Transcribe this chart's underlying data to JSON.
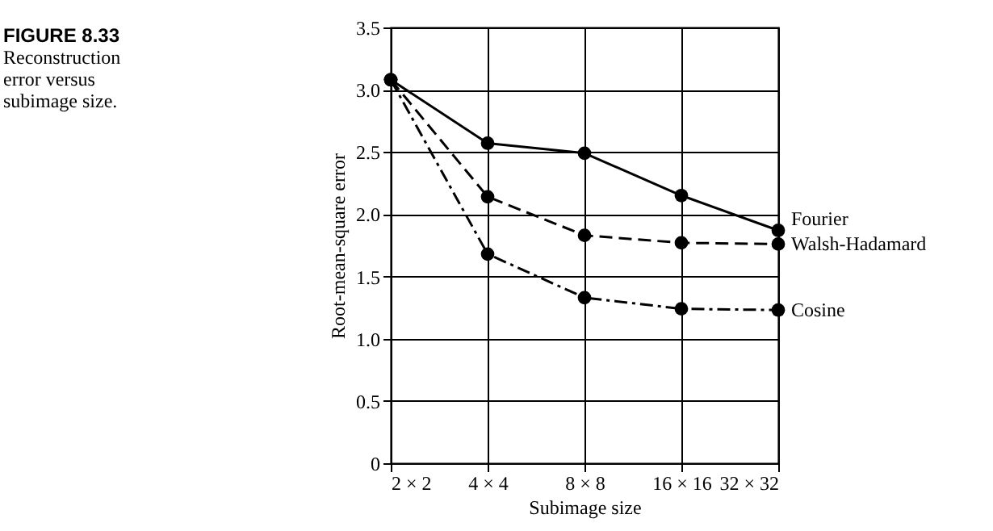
{
  "chart_data": {
    "type": "line",
    "title": "FIGURE 8.33",
    "subtitle": "Reconstruction\nerror versus\nsubimage size.",
    "xlabel": "Subimage size",
    "ylabel": "Root-mean-square error",
    "categories": [
      "2 × 2",
      "4 × 4",
      "8 × 8",
      "16 × 16",
      "32 × 32"
    ],
    "series": [
      {
        "name": "Fourier",
        "color": "#000000",
        "line_style": "solid",
        "values": [
          3.08,
          2.57,
          2.49,
          2.15,
          1.87
        ]
      },
      {
        "name": "Walsh-Hadamard",
        "color": "#000000",
        "line_style": "dashed",
        "values": [
          3.08,
          2.14,
          1.83,
          1.77,
          1.76
        ]
      },
      {
        "name": "Cosine",
        "color": "#000000",
        "line_style": "dashdot",
        "values": [
          3.08,
          1.68,
          1.33,
          1.24,
          1.23
        ]
      }
    ],
    "ylim": [
      0,
      3.5
    ],
    "yticks": [
      0,
      0.5,
      {
        "value": 1,
        "label": "1.0"
      },
      1.5,
      {
        "value": 2,
        "label": "2.0"
      },
      2.5,
      {
        "value": 3,
        "label": "3.0"
      },
      3.5
    ],
    "grid": true,
    "marker": "circle"
  }
}
